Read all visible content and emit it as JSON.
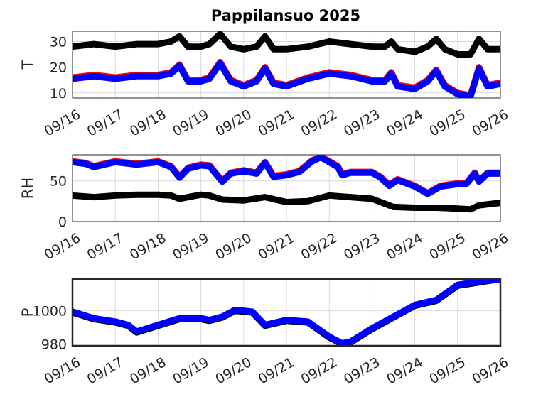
{
  "figure_title": "Pappilansuo 2025",
  "colors": {
    "black": "#000000",
    "red": "#ff0000",
    "blue": "#0000ff",
    "grid": "#d9d9d9"
  },
  "chart_data": [
    {
      "type": "line",
      "ylabel": "T",
      "xlim": [
        "2025-09-16",
        "2025-09-26"
      ],
      "x_ticks": [
        "09/16",
        "09/17",
        "09/18",
        "09/19",
        "09/20",
        "09/21",
        "09/22",
        "09/23",
        "09/24",
        "09/25",
        "09/26"
      ],
      "ylim": [
        8,
        34
      ],
      "y_ticks": [
        10,
        20,
        30
      ],
      "grid": true,
      "series": [
        {
          "color": "#000000",
          "x": [
            0,
            0.5,
            1,
            1.5,
            2,
            2.3,
            2.5,
            2.7,
            3,
            3.2,
            3.45,
            3.7,
            4,
            4.3,
            4.5,
            4.7,
            5,
            5.5,
            6,
            6.5,
            7,
            7.3,
            7.45,
            7.6,
            8,
            8.3,
            8.5,
            8.7,
            9,
            9.3,
            9.5,
            9.7,
            10
          ],
          "y": [
            28,
            29,
            28,
            29,
            29,
            30,
            32,
            28,
            28,
            29,
            33,
            28,
            27,
            28,
            32,
            27,
            27,
            28,
            30,
            29,
            28,
            28,
            30,
            27,
            26,
            28,
            31,
            27,
            25,
            25,
            31,
            27,
            27
          ]
        },
        {
          "color": "#ff0000",
          "x": [
            0,
            0.5,
            1,
            1.5,
            2,
            2.3,
            2.5,
            2.7,
            3,
            3.2,
            3.45,
            3.7,
            4,
            4.3,
            4.5,
            4.7,
            5,
            5.5,
            6,
            6.5,
            7,
            7.3,
            7.45,
            7.6,
            8,
            8.3,
            8.5,
            8.7,
            9,
            9.3,
            9.5,
            9.7,
            10
          ],
          "y": [
            16,
            17,
            16,
            17,
            17,
            18,
            21,
            15,
            15,
            16,
            22,
            15,
            13,
            15,
            20,
            14,
            13,
            16,
            18,
            17,
            15,
            15,
            18,
            13,
            12,
            15,
            19,
            13,
            10,
            9,
            20,
            13,
            14
          ]
        },
        {
          "color": "#0000ff",
          "x": [
            0,
            0.5,
            1,
            1.5,
            2,
            2.3,
            2.5,
            2.7,
            3,
            3.2,
            3.45,
            3.7,
            4,
            4.3,
            4.5,
            4.7,
            5,
            5.5,
            6,
            6.5,
            7,
            7.3,
            7.45,
            7.6,
            8,
            8.3,
            8.5,
            8.7,
            9,
            9.3,
            9.5,
            9.7,
            10
          ],
          "y": [
            15.5,
            16.5,
            15.5,
            16.5,
            16.5,
            17.5,
            20.5,
            14.5,
            14.5,
            15.5,
            21.5,
            14.5,
            12.5,
            14.5,
            19.5,
            13.5,
            12.5,
            15.5,
            17.5,
            16.5,
            14.5,
            14.5,
            17.5,
            12.5,
            11.5,
            14.5,
            18.5,
            12.5,
            9.5,
            8.5,
            19.5,
            12.5,
            13.5
          ]
        }
      ]
    },
    {
      "type": "line",
      "ylabel": "RH",
      "xlim": [
        "2025-09-16",
        "2025-09-26"
      ],
      "x_ticks": [
        "09/16",
        "09/17",
        "09/18",
        "09/19",
        "09/20",
        "09/21",
        "09/22",
        "09/23",
        "09/24",
        "09/25",
        "09/26"
      ],
      "ylim": [
        0,
        82
      ],
      "y_ticks": [
        0,
        50
      ],
      "grid": true,
      "series": [
        {
          "color": "#000000",
          "x": [
            0,
            0.5,
            1,
            1.5,
            2,
            2.3,
            2.5,
            3,
            3.2,
            3.5,
            4,
            4.5,
            5,
            5.5,
            6,
            6.5,
            7,
            7.5,
            8,
            8.5,
            9,
            9.3,
            9.5,
            10
          ],
          "y": [
            32,
            30,
            32,
            33,
            33,
            32,
            28,
            33,
            32,
            27,
            26,
            30,
            24,
            25,
            32,
            30,
            28,
            18,
            17,
            17,
            16,
            15,
            20,
            23
          ]
        },
        {
          "color": "#ff0000",
          "x": [
            0,
            0.3,
            0.5,
            1,
            1.5,
            2,
            2.3,
            2.5,
            2.7,
            3,
            3.2,
            3.5,
            3.7,
            4,
            4.3,
            4.5,
            4.7,
            5,
            5.3,
            5.6,
            5.8,
            6,
            6.2,
            6.3,
            6.5,
            7,
            7.2,
            7.4,
            7.6,
            8,
            8.3,
            8.6,
            9,
            9.2,
            9.4,
            9.5,
            9.7,
            10
          ],
          "y": [
            74,
            72,
            68,
            74,
            71,
            74,
            68,
            55,
            66,
            70,
            69,
            50,
            60,
            63,
            60,
            73,
            56,
            58,
            62,
            75,
            80,
            74,
            68,
            58,
            61,
            61,
            55,
            45,
            52,
            44,
            35,
            44,
            47,
            47,
            60,
            50,
            60,
            60
          ]
        },
        {
          "color": "#0000ff",
          "x": [
            0,
            0.3,
            0.5,
            1,
            1.5,
            2,
            2.3,
            2.5,
            2.7,
            3,
            3.2,
            3.5,
            3.7,
            4,
            4.3,
            4.5,
            4.7,
            5,
            5.3,
            5.6,
            5.8,
            6,
            6.2,
            6.3,
            6.5,
            7,
            7.2,
            7.4,
            7.6,
            8,
            8.3,
            8.6,
            9,
            9.2,
            9.4,
            9.5,
            9.7,
            10
          ],
          "y": [
            73,
            71,
            67,
            73,
            70,
            73,
            67,
            54,
            65,
            69,
            68,
            49,
            59,
            62,
            59,
            72,
            55,
            57,
            61,
            74,
            79,
            73,
            67,
            57,
            60,
            60,
            54,
            44,
            51,
            43,
            34,
            43,
            46,
            46,
            59,
            49,
            59,
            59
          ]
        }
      ]
    },
    {
      "type": "line",
      "ylabel": "P",
      "xlim": [
        "2025-09-16",
        "2025-09-26"
      ],
      "x_ticks": [
        "09/16",
        "09/17",
        "09/18",
        "09/19",
        "09/20",
        "09/21",
        "09/22",
        "09/23",
        "09/24",
        "09/25",
        "09/26"
      ],
      "ylim": [
        979,
        1019
      ],
      "y_ticks": [
        980,
        1000
      ],
      "grid": true,
      "series": [
        {
          "color": "#000000",
          "x": [
            0,
            0.5,
            1,
            1.3,
            1.5,
            2,
            2.5,
            3,
            3.2,
            3.5,
            3.8,
            4.2,
            4.5,
            5,
            5.5,
            6,
            6.3,
            6.5,
            7,
            7.5,
            8,
            8.5,
            9,
            9.5,
            10
          ],
          "y": [
            999,
            995,
            993,
            991,
            987,
            991,
            995,
            995,
            994,
            996,
            1000,
            999,
            991,
            994,
            993,
            984,
            980,
            981,
            989,
            996,
            1003,
            1006,
            1015,
            1017,
            1019
          ]
        },
        {
          "color": "#0000ff",
          "x": [
            0,
            0.5,
            1,
            1.3,
            1.5,
            2,
            2.5,
            3,
            3.2,
            3.5,
            3.8,
            4.2,
            4.5,
            5,
            5.5,
            6,
            6.3,
            6.5,
            7,
            7.5,
            8,
            8.5,
            9,
            9.5,
            10
          ],
          "y": [
            999.5,
            995.5,
            993.5,
            991.5,
            987.5,
            991.5,
            995.5,
            995.5,
            994.5,
            996.5,
            1000.5,
            999.5,
            991.5,
            994.5,
            993.5,
            984.5,
            980.5,
            981.5,
            989.5,
            996.5,
            1003.5,
            1006.5,
            1015.5,
            1017.5,
            1019
          ]
        }
      ]
    }
  ]
}
